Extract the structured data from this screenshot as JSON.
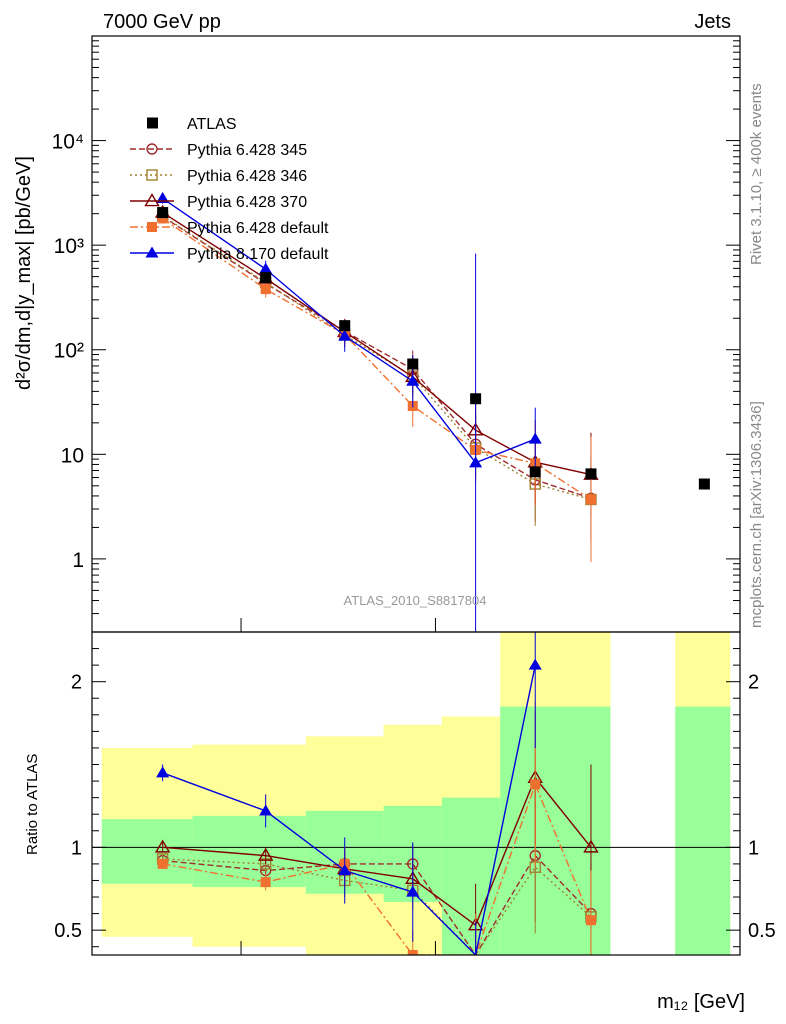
{
  "chart_data": {
    "type": "scatter",
    "header_left": "7000 GeV pp",
    "header_right": "Jets",
    "side_label_top": "Rivet 3.1.10, ≥ 400k events",
    "side_label_bottom": "mcplots.cern.ch [arXiv:1306.3436]",
    "watermark": "ATLAS_2010_S8817804",
    "ylabel": "d²σ/dm,d|y_max| [pb/GeV]",
    "ratio_ylabel": "Ratio to ATLAS",
    "xlabel": "m₁₂ [GeV]",
    "x_range": [
      0,
      10
    ],
    "y_log": true,
    "ylim": [
      0.2,
      100000
    ],
    "ratio_ylim": [
      0.35,
      2.3
    ],
    "main_ticks": [
      {
        "value": 1,
        "label": "1"
      },
      {
        "value": 10,
        "label": "10"
      },
      {
        "value": 100,
        "label": "10²"
      },
      {
        "value": 1000,
        "label": "10³"
      },
      {
        "value": 10000,
        "label": "10⁴"
      }
    ],
    "ratio_ticks": [
      {
        "value": 0.5,
        "label": "0.5"
      },
      {
        "value": 1,
        "label": "1"
      },
      {
        "value": 2,
        "label": "2"
      }
    ],
    "data": {
      "name": "ATLAS",
      "color": "#000000",
      "x": [
        1.09,
        2.68,
        3.9,
        4.95,
        5.92,
        6.84,
        7.7,
        9.45
      ],
      "y": [
        2050,
        490,
        170,
        73,
        34,
        6.8,
        6.5,
        5.2
      ]
    },
    "bands": [
      {
        "x0": 0.15,
        "x1": 1.55,
        "green": [
          0.78,
          1.17
        ],
        "yellow": [
          0.46,
          1.6
        ]
      },
      {
        "x0": 1.55,
        "x1": 3.3,
        "green": [
          0.76,
          1.19
        ],
        "yellow": [
          0.4,
          1.62
        ]
      },
      {
        "x0": 3.3,
        "x1": 4.5,
        "green": [
          0.72,
          1.22
        ],
        "yellow": [
          0.35,
          1.67
        ]
      },
      {
        "x0": 4.5,
        "x1": 5.4,
        "green": [
          0.67,
          1.25
        ],
        "yellow": [
          0.35,
          1.74
        ]
      },
      {
        "x0": 5.4,
        "x1": 6.3,
        "green": [
          0.35,
          1.3
        ],
        "yellow": [
          0.35,
          1.79
        ]
      },
      {
        "x0": 6.3,
        "x1": 8.0,
        "green": [
          0.35,
          1.85
        ],
        "yellow": [
          0.35,
          2.3
        ]
      },
      {
        "x0": 9.0,
        "x1": 9.85,
        "green": [
          0.35,
          1.85
        ],
        "yellow": [
          0.35,
          2.3
        ]
      }
    ],
    "series": [
      {
        "name": "Pythia 6.428 345",
        "color": "#a02c2c",
        "dash": "6,3",
        "marker": "circle-open",
        "x": [
          1.09,
          2.68,
          3.9,
          4.95,
          5.92,
          6.84,
          7.7
        ],
        "y": [
          1880,
          430,
          150,
          65,
          12.5,
          5.7,
          3.8
        ],
        "yerr": [
          0.05,
          0.08,
          0.12,
          0.18,
          0.3,
          0.4,
          0.4
        ],
        "ratio": [
          0.92,
          0.86,
          0.9,
          0.9,
          0.3,
          0.95,
          0.6
        ],
        "ratio_err": [
          0.03,
          0.05,
          0.1,
          0.12,
          0.3,
          0.4,
          0.3
        ]
      },
      {
        "name": "Pythia 6.428 346",
        "color": "#a08030",
        "dash": "2,3",
        "marker": "square-open",
        "x": [
          1.09,
          2.68,
          3.9,
          4.95,
          5.92,
          6.84,
          7.7
        ],
        "y": [
          1900,
          440,
          138,
          56,
          11.5,
          5.2,
          3.7
        ],
        "yerr": [
          0.05,
          0.08,
          0.12,
          0.18,
          0.3,
          0.4,
          0.4
        ],
        "ratio": [
          0.93,
          0.9,
          0.8,
          0.74,
          0.3,
          0.88,
          0.58
        ],
        "ratio_err": [
          0.03,
          0.05,
          0.1,
          0.12,
          0.3,
          0.4,
          0.3
        ]
      },
      {
        "name": "Pythia 6.428 370",
        "color": "#800000",
        "dash": "",
        "marker": "triangle-open",
        "x": [
          1.09,
          2.68,
          3.9,
          4.95,
          5.92,
          6.84,
          7.7
        ],
        "y": [
          2050,
          480,
          148,
          55,
          17,
          8.4,
          6.4
        ],
        "yerr": [
          0.05,
          0.08,
          0.12,
          0.18,
          0.3,
          0.4,
          0.4
        ],
        "ratio": [
          1.0,
          0.95,
          0.87,
          0.81,
          0.53,
          1.42,
          1.0
        ],
        "ratio_err": [
          0.03,
          0.05,
          0.1,
          0.12,
          0.25,
          0.4,
          0.5
        ]
      },
      {
        "name": "Pythia 6.428 default",
        "color": "#f07030",
        "dash": "8,3,2,3",
        "marker": "square-filled",
        "x": [
          1.09,
          2.68,
          3.9,
          4.95,
          5.92,
          6.84,
          7.7
        ],
        "y": [
          1800,
          380,
          140,
          29,
          11,
          8.2,
          3.7
        ],
        "yerr": [
          0.05,
          0.08,
          0.12,
          0.2,
          0.3,
          0.4,
          0.6
        ],
        "ratio": [
          0.9,
          0.79,
          0.9,
          0.35,
          0.3,
          1.38,
          0.56
        ],
        "ratio_err": [
          0.03,
          0.05,
          0.1,
          0.15,
          0.3,
          0.5,
          0.3
        ]
      },
      {
        "name": "Pythia 8.170 default",
        "color": "#0000e0",
        "dash": "",
        "marker": "triangle-filled",
        "x": [
          1.09,
          2.68,
          3.9,
          4.95,
          5.92,
          6.84
        ],
        "y": [
          2800,
          590,
          135,
          50,
          8.3,
          14
        ],
        "yerr": [
          0.05,
          0.08,
          0.15,
          0.25,
          2.0,
          0.3
        ],
        "ratio": [
          1.45,
          1.22,
          0.86,
          0.73,
          0.25,
          2.1
        ],
        "ratio_err": [
          0.05,
          0.1,
          0.2,
          0.3,
          0.3,
          0.5
        ]
      }
    ]
  }
}
